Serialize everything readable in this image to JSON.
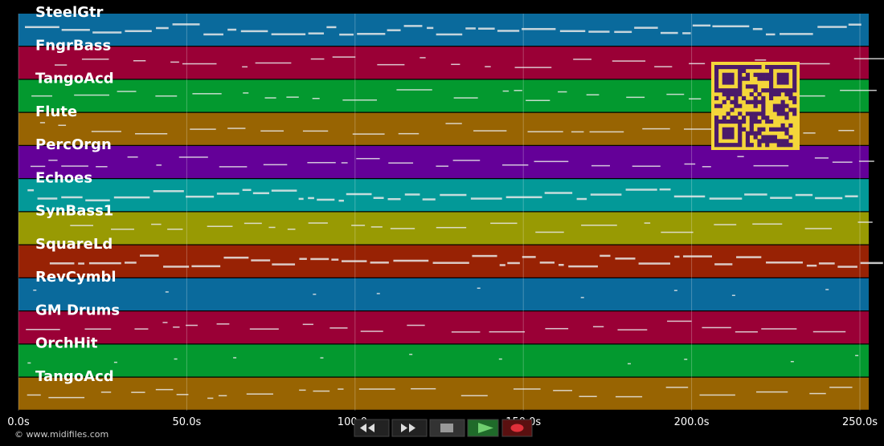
{
  "tracks": [
    {
      "name": "SteelGtr",
      "color": "#0a6a9c"
    },
    {
      "name": "FngrBass",
      "color": "#9a0036"
    },
    {
      "name": "TangoAcd",
      "color": "#03992f"
    },
    {
      "name": "Flute",
      "color": "#986402"
    },
    {
      "name": "PercOrgn",
      "color": "#640098"
    },
    {
      "name": "Echoes",
      "color": "#039998"
    },
    {
      "name": "SynBass1",
      "color": "#989a03"
    },
    {
      "name": "SquareLd",
      "color": "#982204"
    },
    {
      "name": "RevCymbl",
      "color": "#0a6a9c"
    },
    {
      "name": "GM Drums",
      "color": "#9a0036"
    },
    {
      "name": "OrchHit",
      "color": "#03992f"
    },
    {
      "name": "TangoAcd",
      "color": "#986402"
    }
  ],
  "axis": {
    "ticks": [
      "0.0s",
      "50.0s",
      "100.0s",
      "150.0s",
      "200.0s",
      "250.0s"
    ]
  },
  "footer": {
    "copyright": "© www.midifiles.com"
  }
}
